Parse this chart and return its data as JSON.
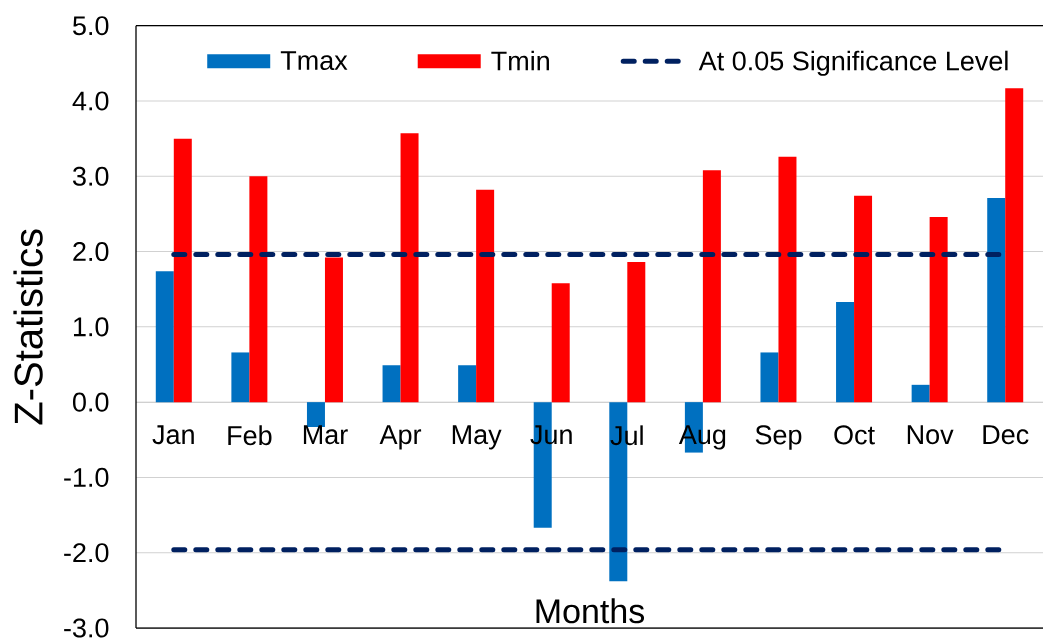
{
  "chart_data": {
    "type": "bar",
    "xlabel": "Months",
    "ylabel": "Z-Statistics",
    "categories": [
      "Jan",
      "Feb",
      "Mar",
      "Apr",
      "May",
      "Jun",
      "Jul",
      "Aug",
      "Sep",
      "Oct",
      "Nov",
      "Dec"
    ],
    "series": [
      {
        "name": "Tmax",
        "color": "#0070c0",
        "values": [
          1.74,
          0.66,
          -0.33,
          0.49,
          0.49,
          -1.67,
          -2.38,
          -0.67,
          0.66,
          1.33,
          0.23,
          2.71
        ]
      },
      {
        "name": "Tmin",
        "color": "#ff0000",
        "values": [
          3.5,
          3.0,
          1.92,
          3.57,
          2.82,
          1.58,
          1.86,
          3.08,
          3.26,
          2.74,
          2.46,
          4.17
        ]
      },
      {
        "name": "At 0.05 Significance Level",
        "type": "line",
        "line_style": "dashed",
        "color": "#002060",
        "values": [
          1.96,
          1.96,
          1.96,
          1.96,
          1.96,
          1.96,
          1.96,
          1.96,
          1.96,
          1.96,
          1.96,
          1.96
        ]
      },
      {
        "type": "line",
        "line_style": "dashed",
        "color": "#002060",
        "values": [
          -1.96,
          -1.96,
          -1.96,
          -1.96,
          -1.96,
          -1.96,
          -1.96,
          -1.96,
          -1.96,
          -1.96,
          -1.96,
          -1.96
        ]
      }
    ],
    "ylim": [
      -3,
      5
    ],
    "yticks": [
      {
        "value": -3,
        "label": "-3.0"
      },
      {
        "value": -2,
        "label": "-2.0"
      },
      {
        "value": -1,
        "label": "-1.0"
      },
      {
        "value": 0,
        "label": "0.0"
      },
      {
        "value": 1,
        "label": "1.0"
      },
      {
        "value": 2,
        "label": "2.0"
      },
      {
        "value": 3,
        "label": "3.0"
      },
      {
        "value": 4,
        "label": "4.0"
      },
      {
        "value": 5,
        "label": "5.0"
      }
    ],
    "grid": "y",
    "legend": "top"
  }
}
